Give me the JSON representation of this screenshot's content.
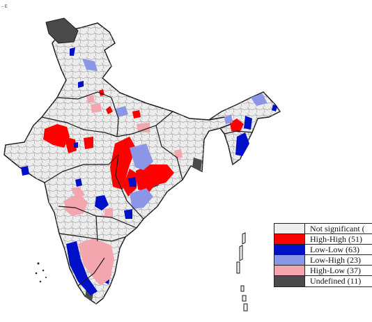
{
  "corner_mark": "– E",
  "legend": {
    "items": [
      {
        "label": "Not significant (",
        "color": "#eeeeee"
      },
      {
        "label": "High-High (51)",
        "color": "#ff0000"
      },
      {
        "label": "Low-Low (63)",
        "color": "#0010c8"
      },
      {
        "label": "Low-High (23)",
        "color": "#8c96e6"
      },
      {
        "label": "High-Low (37)",
        "color": "#f4a6ae"
      },
      {
        "label": "Undefined (11)",
        "color": "#4a4a4a"
      }
    ]
  },
  "colors": {
    "land": "#ededed",
    "state_border": "#1a1a1a",
    "district_border": "#9a9a9a"
  }
}
